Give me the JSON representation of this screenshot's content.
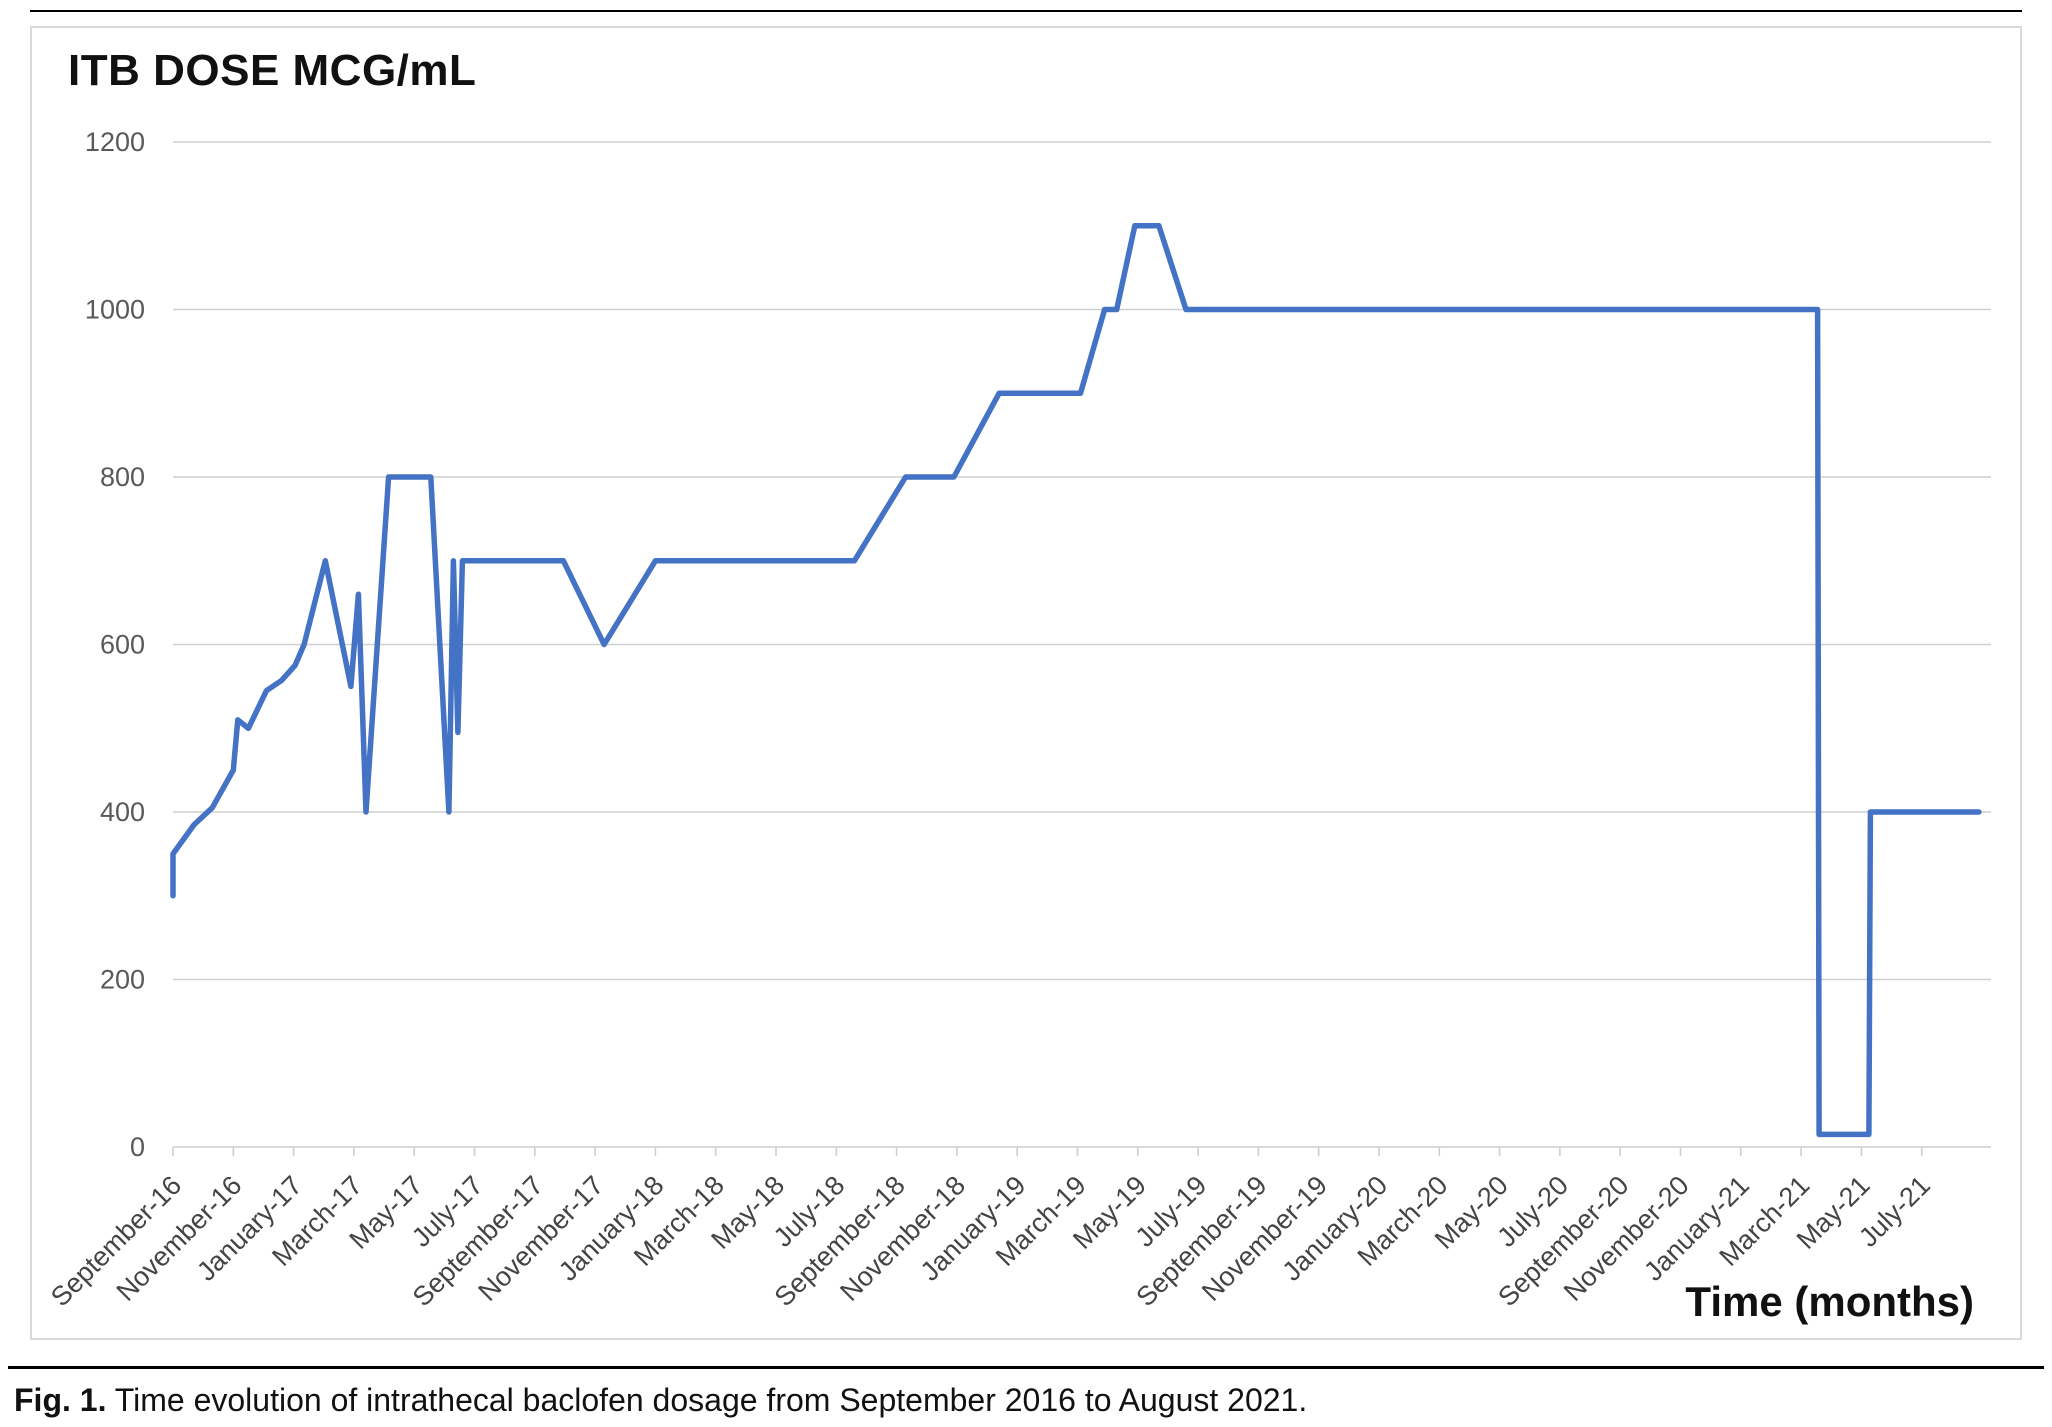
{
  "figure": {
    "caption_label": "Fig. 1.",
    "caption_text": " Time evolution of intrathecal baclofen dosage from September 2016 to August 2021."
  },
  "chart_data": {
    "type": "line",
    "title": "ITB DOSE MCG/mL",
    "xlabel": "Time (months)",
    "ylabel": "ITB dose (mcg/mL)",
    "legend": "none",
    "grid": "horizontal",
    "xlim": [
      0,
      60.3
    ],
    "ylim": [
      0,
      1200
    ],
    "y_ticks": [
      0,
      200,
      400,
      600,
      800,
      1000,
      1200
    ],
    "x_tick_positions": [
      0,
      2,
      4,
      6,
      8,
      10,
      12,
      14,
      16,
      18,
      20,
      22,
      24,
      26,
      28,
      30,
      32,
      34,
      36,
      38,
      40,
      42,
      44,
      46,
      48,
      50,
      52,
      54,
      56,
      58
    ],
    "x_tick_labels": [
      "September-16",
      "November-16",
      "January-17",
      "March-17",
      "May-17",
      "July-17",
      "September-17",
      "November-17",
      "January-18",
      "March-18",
      "May-18",
      "July-18",
      "September-18",
      "November-18",
      "January-19",
      "March-19",
      "May-19",
      "July-19",
      "September-19",
      "November-19",
      "January-20",
      "March-20",
      "May-20",
      "July-20",
      "September-20",
      "November-20",
      "January-21",
      "March-21",
      "May-21",
      "July-21"
    ],
    "line_color": "#4472C4",
    "grid_color": "#cfcfcf",
    "tick_label_color": "#595959",
    "x_tick_label_color": "#444444",
    "series": [
      {
        "name": "ITB dose",
        "x_unit": "months since September 2016",
        "points": [
          [
            0,
            300
          ],
          [
            0,
            350
          ],
          [
            0.7,
            385
          ],
          [
            1.3,
            405
          ],
          [
            2.0,
            450
          ],
          [
            2.15,
            510
          ],
          [
            2.5,
            500
          ],
          [
            3.1,
            545
          ],
          [
            3.6,
            557
          ],
          [
            4.05,
            575
          ],
          [
            4.35,
            600
          ],
          [
            5.05,
            700
          ],
          [
            5.9,
            550
          ],
          [
            6.15,
            660
          ],
          [
            6.4,
            400
          ],
          [
            7.15,
            800
          ],
          [
            8.55,
            800
          ],
          [
            9.15,
            400
          ],
          [
            9.3,
            700
          ],
          [
            9.45,
            495
          ],
          [
            9.6,
            700
          ],
          [
            12.95,
            700
          ],
          [
            14.3,
            600
          ],
          [
            16.0,
            700
          ],
          [
            22.6,
            700
          ],
          [
            24.3,
            800
          ],
          [
            25.9,
            800
          ],
          [
            27.4,
            900
          ],
          [
            30.1,
            900
          ],
          [
            30.9,
            1000
          ],
          [
            31.3,
            1000
          ],
          [
            31.9,
            1100
          ],
          [
            32.7,
            1100
          ],
          [
            33.6,
            1000
          ],
          [
            54.55,
            1000
          ],
          [
            54.6,
            15
          ],
          [
            56.25,
            15
          ],
          [
            56.3,
            400
          ],
          [
            59.9,
            400
          ]
        ]
      }
    ]
  }
}
